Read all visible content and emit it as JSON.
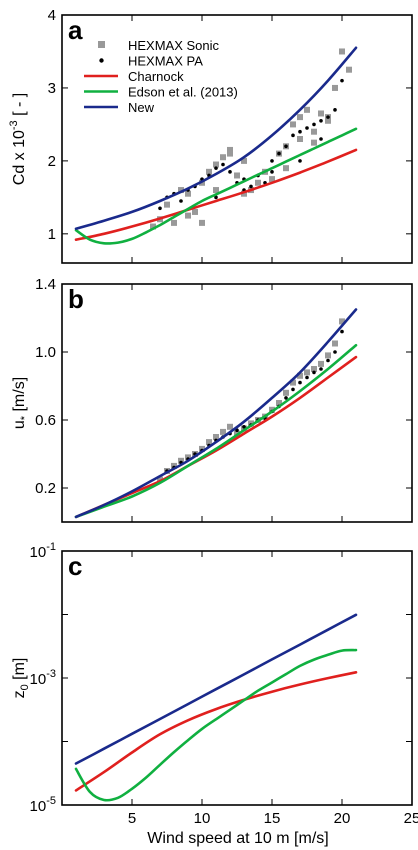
{
  "figure": {
    "xlabel": "Wind speed at 10 m [m/s]",
    "xticks": [
      "5",
      "10",
      "15",
      "20",
      "25"
    ],
    "xlim": [
      0,
      25
    ]
  },
  "colors": {
    "charnock": "#e0201e",
    "edson": "#10b040",
    "new": "#1a2a8c",
    "sonic": "#999999",
    "pa": "#000000"
  },
  "chart_data": [
    {
      "panel": "a",
      "type": "line",
      "ylabel_main": "Cd x 10",
      "ylabel_exp": "-3",
      "ylabel_unit": " [ - ]",
      "ylim": [
        0.6,
        4
      ],
      "yticks": [
        "1",
        "2",
        "3",
        "4"
      ],
      "ytick_values": [
        1,
        2,
        3,
        4
      ],
      "legend": {
        "placement": "top-left",
        "entries": [
          "HEXMAX Sonic",
          "HEXMAX PA",
          "Charnock",
          "Edson et al. (2013)",
          "New"
        ]
      },
      "series": [
        {
          "name": "Charnock",
          "x": [
            1,
            3,
            5,
            7,
            9,
            11,
            13,
            15,
            17,
            19,
            21
          ],
          "y": [
            0.92,
            1.0,
            1.1,
            1.21,
            1.33,
            1.45,
            1.57,
            1.7,
            1.84,
            1.99,
            2.15
          ]
        },
        {
          "name": "Edson et al. (2013)",
          "x": [
            1,
            2,
            3,
            4,
            5,
            6,
            7,
            8,
            9,
            10,
            11,
            12,
            13,
            14,
            15,
            16,
            17,
            18,
            19,
            20,
            21
          ],
          "y": [
            1.05,
            0.92,
            0.87,
            0.88,
            0.93,
            1.02,
            1.12,
            1.23,
            1.34,
            1.45,
            1.54,
            1.63,
            1.72,
            1.81,
            1.9,
            1.99,
            2.08,
            2.17,
            2.26,
            2.35,
            2.44
          ]
        },
        {
          "name": "New",
          "x": [
            1,
            3,
            5,
            7,
            9,
            11,
            13,
            15,
            17,
            19,
            21
          ],
          "y": [
            1.07,
            1.18,
            1.3,
            1.45,
            1.62,
            1.82,
            2.05,
            2.35,
            2.7,
            3.1,
            3.55
          ]
        }
      ],
      "scatter": [
        {
          "name": "HEXMAX Sonic",
          "x": [
            6.5,
            7,
            7.5,
            8,
            8.5,
            9,
            9.5,
            10,
            10.5,
            11,
            11.5,
            12,
            12.5,
            13,
            13.5,
            14,
            14.5,
            15,
            15.5,
            16,
            16.5,
            17,
            17.5,
            18,
            18.5,
            19,
            19.5,
            20,
            9,
            10,
            11,
            12,
            13,
            16,
            17,
            18,
            19,
            20.5
          ],
          "y": [
            1.1,
            1.2,
            1.4,
            1.15,
            1.6,
            1.55,
            1.3,
            1.7,
            1.85,
            1.95,
            2.05,
            2.15,
            1.8,
            2.0,
            1.6,
            1.7,
            1.85,
            1.75,
            2.1,
            2.2,
            2.5,
            2.6,
            2.7,
            2.4,
            2.65,
            2.55,
            3.0,
            3.5,
            1.25,
            1.15,
            1.6,
            2.1,
            1.55,
            1.9,
            2.3,
            2.25,
            2.6,
            3.25
          ]
        },
        {
          "name": "HEXMAX PA",
          "x": [
            7,
            7.5,
            8,
            8.5,
            9,
            9.5,
            10,
            10.5,
            11,
            11.5,
            12,
            12.5,
            13,
            13.5,
            14,
            14.5,
            15,
            15.5,
            16,
            16.5,
            17,
            17.5,
            18,
            18.5,
            19,
            19.5,
            20,
            11,
            13,
            15,
            17,
            18.5
          ],
          "y": [
            1.35,
            1.5,
            1.55,
            1.45,
            1.6,
            1.65,
            1.75,
            1.8,
            1.9,
            1.95,
            1.85,
            1.7,
            1.75,
            1.65,
            1.8,
            1.7,
            2.0,
            2.1,
            2.2,
            2.35,
            2.4,
            2.45,
            2.5,
            2.3,
            2.6,
            2.7,
            3.1,
            1.5,
            1.6,
            1.85,
            2.0,
            2.55
          ]
        }
      ]
    },
    {
      "panel": "b",
      "type": "line",
      "ylabel_main": "u",
      "ylabel_sub": "*",
      "ylabel_unit": " [m/s]",
      "ylim": [
        0,
        1.4
      ],
      "yticks": [
        "0.2",
        "0.6",
        "1.0",
        "1.4"
      ],
      "ytick_values": [
        0.2,
        0.6,
        1.0,
        1.4
      ],
      "series": [
        {
          "name": "Charnock",
          "x": [
            1,
            3,
            5,
            7,
            9,
            11,
            13,
            15,
            17,
            19,
            21
          ],
          "y": [
            0.03,
            0.1,
            0.17,
            0.24,
            0.33,
            0.42,
            0.52,
            0.62,
            0.73,
            0.85,
            0.97
          ]
        },
        {
          "name": "Edson et al. (2013)",
          "x": [
            1,
            3,
            5,
            7,
            9,
            11,
            13,
            15,
            17,
            19,
            21
          ],
          "y": [
            0.03,
            0.09,
            0.15,
            0.23,
            0.33,
            0.43,
            0.54,
            0.65,
            0.77,
            0.9,
            1.04
          ]
        },
        {
          "name": "New",
          "x": [
            1,
            3,
            5,
            7,
            9,
            11,
            13,
            15,
            17,
            19,
            21
          ],
          "y": [
            0.03,
            0.1,
            0.18,
            0.27,
            0.36,
            0.47,
            0.59,
            0.73,
            0.88,
            1.06,
            1.25
          ]
        }
      ],
      "scatter": [
        {
          "name": "HEXMAX Sonic",
          "x": [
            7,
            7.5,
            8,
            8.5,
            9,
            9.5,
            10,
            10.5,
            11,
            11.5,
            12,
            12.5,
            13,
            13.5,
            14,
            14.5,
            15,
            15.5,
            16,
            16.5,
            17,
            17.5,
            18,
            18.5,
            19,
            19.5,
            20
          ],
          "y": [
            0.25,
            0.3,
            0.33,
            0.36,
            0.38,
            0.4,
            0.43,
            0.47,
            0.5,
            0.53,
            0.56,
            0.52,
            0.55,
            0.58,
            0.6,
            0.62,
            0.66,
            0.7,
            0.76,
            0.82,
            0.86,
            0.88,
            0.9,
            0.93,
            0.98,
            1.05,
            1.18
          ]
        },
        {
          "name": "HEXMAX PA",
          "x": [
            7.5,
            8,
            8.5,
            9,
            9.5,
            10,
            10.5,
            11,
            11.5,
            12,
            12.5,
            13,
            13.5,
            14,
            14.5,
            15,
            15.5,
            16,
            16.5,
            17,
            17.5,
            18,
            18.5,
            19,
            19.5,
            20
          ],
          "y": [
            0.3,
            0.32,
            0.35,
            0.37,
            0.4,
            0.42,
            0.45,
            0.48,
            0.5,
            0.52,
            0.54,
            0.56,
            0.57,
            0.6,
            0.61,
            0.65,
            0.68,
            0.73,
            0.78,
            0.82,
            0.85,
            0.88,
            0.9,
            0.95,
            1.0,
            1.12
          ]
        }
      ]
    },
    {
      "panel": "c",
      "type": "line",
      "ylabel_main": "z",
      "ylabel_sub": "0",
      "ylabel_unit": " [m]",
      "yscale": "log",
      "ylim": [
        1e-05,
        0.1
      ],
      "yticks": [
        {
          "base": "10",
          "exp": "-1",
          "value": 0.1
        },
        {
          "base": "10",
          "exp": "-3",
          "value": 0.001
        },
        {
          "base": "10",
          "exp": "-5",
          "value": 1e-05
        }
      ],
      "series": [
        {
          "name": "Charnock",
          "x": [
            1,
            3,
            5,
            7,
            9,
            11,
            13,
            15,
            17,
            19,
            21
          ],
          "y": [
            1.7e-05,
            3.3e-05,
            6.71e-05,
            0.00013,
            0.000216,
            0.000324,
            0.000454,
            0.000609,
            0.000791,
            0.000997,
            0.00123
          ]
        },
        {
          "name": "Edson et al. (2013)",
          "x": [
            1,
            2,
            3,
            4,
            5,
            6,
            7,
            8,
            9,
            10,
            11,
            12,
            13,
            14,
            15,
            16,
            17,
            18,
            19,
            20,
            21
          ],
          "y": [
            3.7e-05,
            1.6e-05,
            1.2e-05,
            1.3e-05,
            1.8e-05,
            2.7e-05,
            4.3e-05,
            6.8e-05,
            0.000105,
            0.000158,
            0.000224,
            0.000316,
            0.000447,
            0.00063,
            0.00085,
            0.00115,
            0.00155,
            0.00195,
            0.00232,
            0.0027,
            0.00275
          ]
        },
        {
          "name": "New",
          "x": [
            1,
            3,
            5,
            7,
            9,
            11,
            13,
            15,
            17,
            19,
            21
          ],
          "y": [
            4.5e-05,
            7.7e-05,
            0.000132,
            0.000226,
            0.000388,
            0.000666,
            0.00114,
            0.00196,
            0.00336,
            0.00577,
            0.0099
          ]
        }
      ]
    }
  ]
}
